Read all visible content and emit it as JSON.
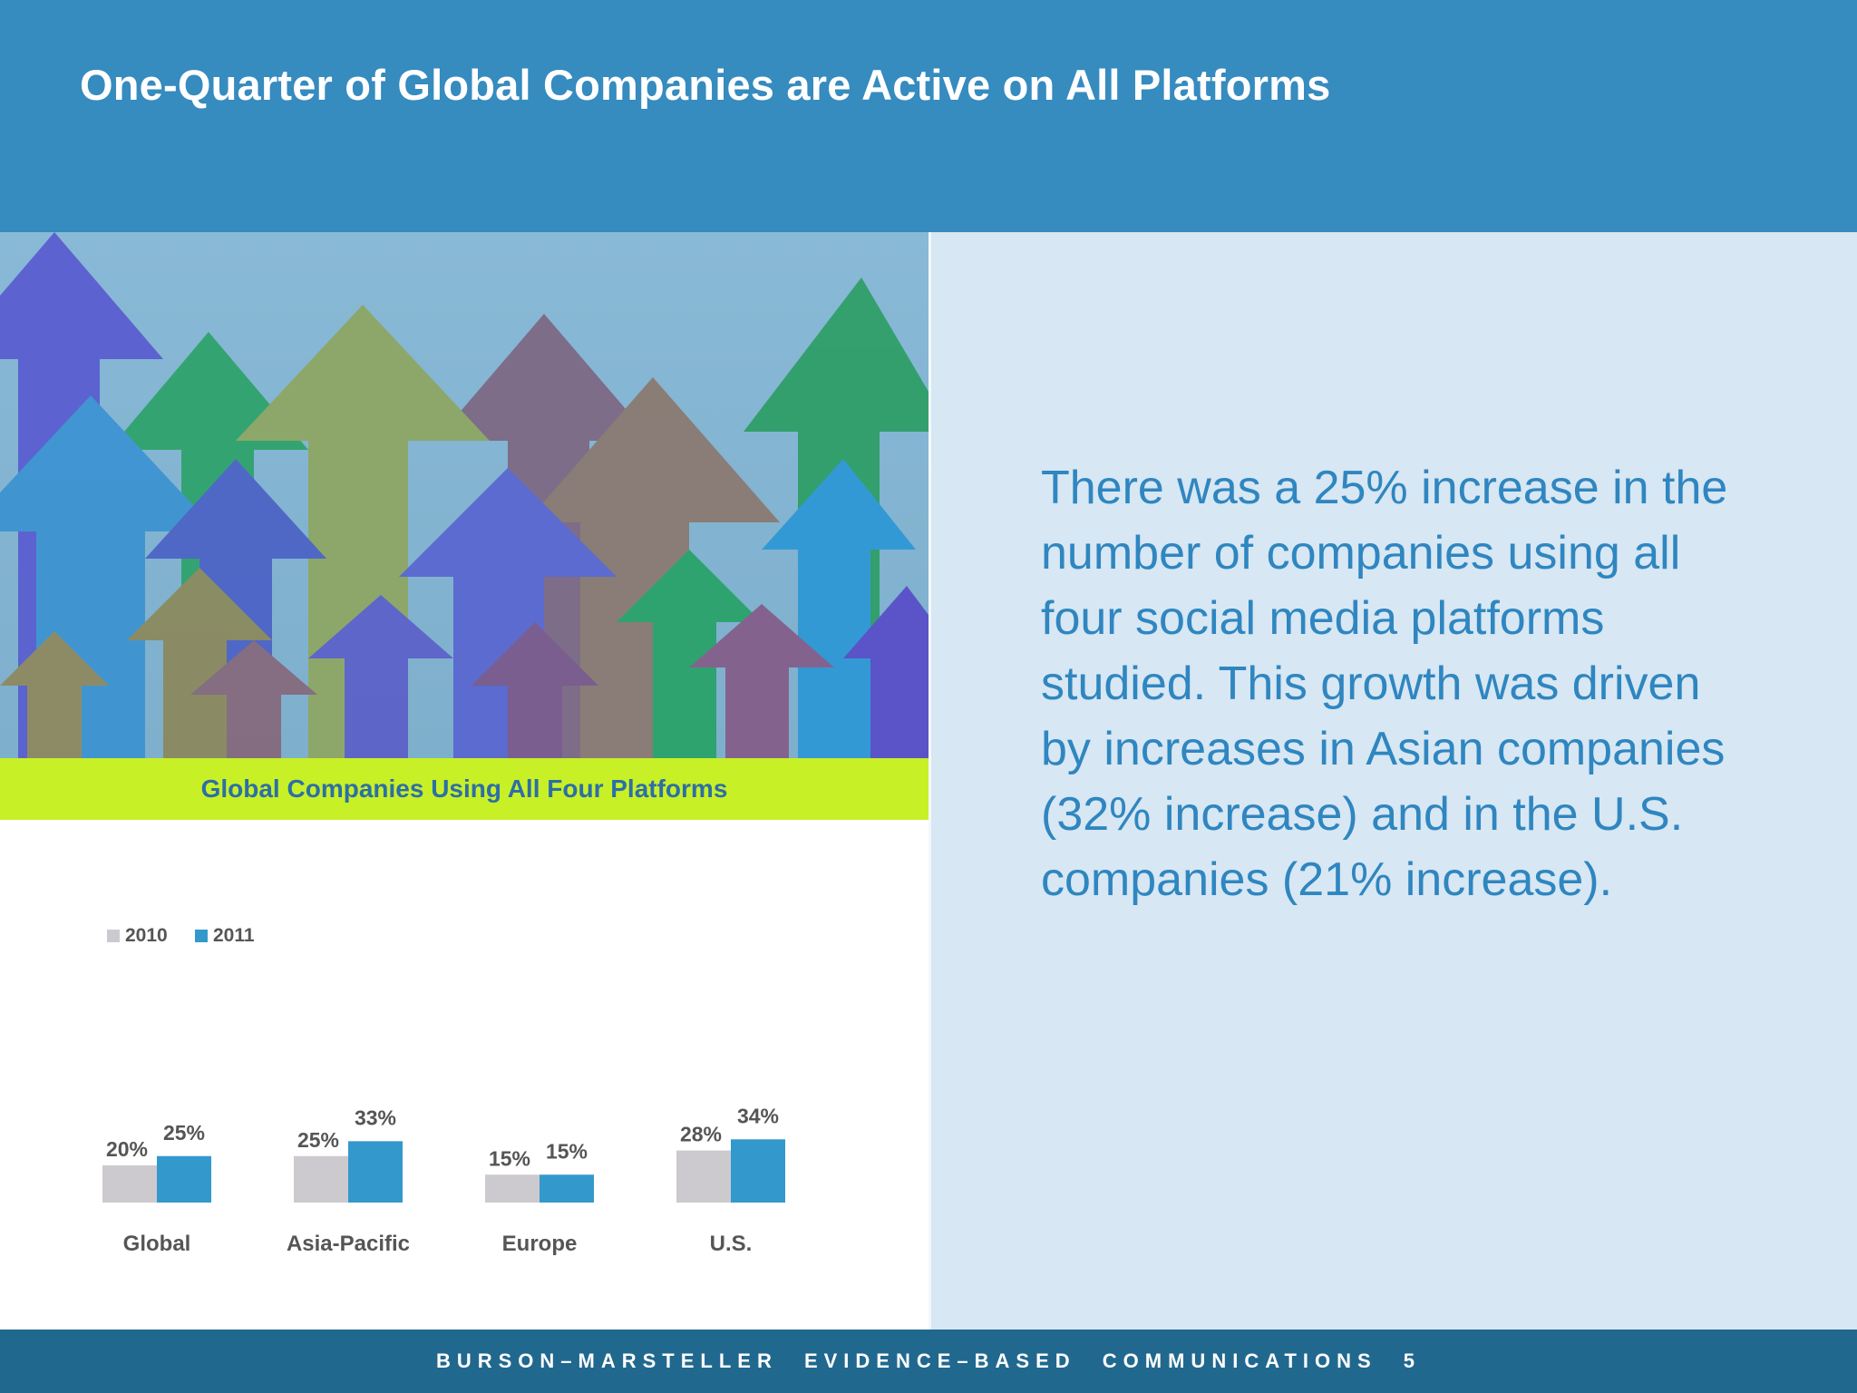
{
  "page": {
    "title": "One-Quarter of Global Companies are Active on All Platforms",
    "body_text": "There was a 25% increase in the number of companies using all four social media platforms studied. This growth was driven by increases in Asian companies (32% increase) and in the U.S. companies (21% increase).",
    "footer": "BURSON–MARSTELLER  EVIDENCE–BASED  COMMUNICATIONS  5"
  },
  "colors": {
    "header": "#368bbf",
    "chart_band": "#c8f027",
    "right_panel": "#d7e7f3",
    "footer": "#21688f",
    "series_2010": "#cdcacf",
    "series_2011": "#3399cc"
  },
  "photo": {
    "icon": "colorful-upward-arrows-photo"
  },
  "chart_data": {
    "type": "bar",
    "title": "Global Companies Using All Four Platforms",
    "categories": [
      "Global",
      "Asia-Pacific",
      "Europe",
      "U.S."
    ],
    "series": [
      {
        "name": "2010",
        "values": [
          20,
          25,
          15,
          28
        ],
        "labels": [
          "20%",
          "25%",
          "15%",
          "28%"
        ],
        "color": "#cdcacf"
      },
      {
        "name": "2011",
        "values": [
          25,
          33,
          15,
          34
        ],
        "labels": [
          "25%",
          "33%",
          "15%",
          "34%"
        ],
        "color": "#3399cc"
      }
    ],
    "unit": "%",
    "legend": "top-left",
    "grid": false,
    "ylim": [
      0,
      40
    ]
  }
}
